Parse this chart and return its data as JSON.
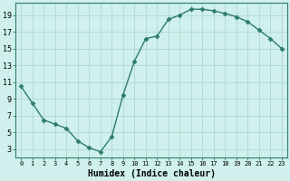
{
  "x": [
    0,
    1,
    2,
    3,
    4,
    5,
    6,
    7,
    8,
    9,
    10,
    11,
    12,
    13,
    14,
    15,
    16,
    17,
    18,
    19,
    20,
    21,
    22,
    23
  ],
  "y": [
    10.5,
    8.5,
    6.5,
    6.0,
    5.5,
    4.0,
    3.2,
    2.7,
    4.5,
    9.5,
    13.5,
    16.2,
    16.5,
    18.5,
    19.0,
    19.7,
    19.7,
    19.5,
    19.2,
    18.8,
    18.2,
    17.2,
    16.2,
    15.0
  ],
  "line_color": "#2e7d6b",
  "marker": "D",
  "marker_size": 2.5,
  "background_color": "#cff0ec",
  "grid_color": "#b0d8d4",
  "xlabel": "Humidex (Indice chaleur)",
  "xlabel_fontsize": 7,
  "ylabel_ticks": [
    3,
    5,
    7,
    9,
    11,
    13,
    15,
    17,
    19
  ],
  "xlim": [
    -0.5,
    23.5
  ],
  "ylim": [
    2.0,
    20.5
  ],
  "ytick_fontsize": 6,
  "xtick_fontsize": 5,
  "line_width": 1.0
}
